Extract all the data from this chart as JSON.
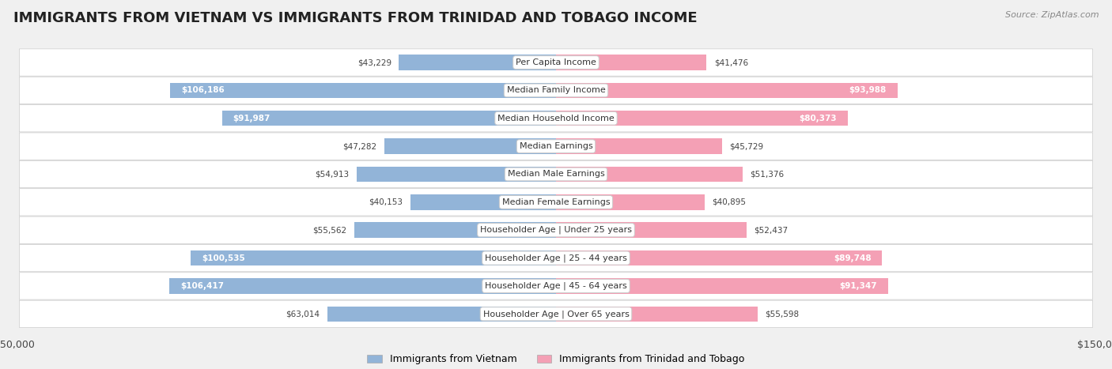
{
  "title": "IMMIGRANTS FROM VIETNAM VS IMMIGRANTS FROM TRINIDAD AND TOBAGO INCOME",
  "source": "Source: ZipAtlas.com",
  "categories": [
    "Per Capita Income",
    "Median Family Income",
    "Median Household Income",
    "Median Earnings",
    "Median Male Earnings",
    "Median Female Earnings",
    "Householder Age | Under 25 years",
    "Householder Age | 25 - 44 years",
    "Householder Age | 45 - 64 years",
    "Householder Age | Over 65 years"
  ],
  "vietnam_values": [
    43229,
    106186,
    91987,
    47282,
    54913,
    40153,
    55562,
    100535,
    106417,
    63014
  ],
  "trinidad_values": [
    41476,
    93988,
    80373,
    45729,
    51376,
    40895,
    52437,
    89748,
    91347,
    55598
  ],
  "vietnam_color": "#92b4d8",
  "trinidad_color": "#f4a0b5",
  "vietnam_label": "Immigrants from Vietnam",
  "trinidad_label": "Immigrants from Trinidad and Tobago",
  "xlim": 150000,
  "background_color": "#f0f0f0",
  "row_bg_color": "#ffffff",
  "title_fontsize": 13,
  "label_fontsize": 8,
  "value_fontsize": 7.5,
  "legend_fontsize": 9,
  "bar_height": 0.55,
  "row_padding": 0.45
}
